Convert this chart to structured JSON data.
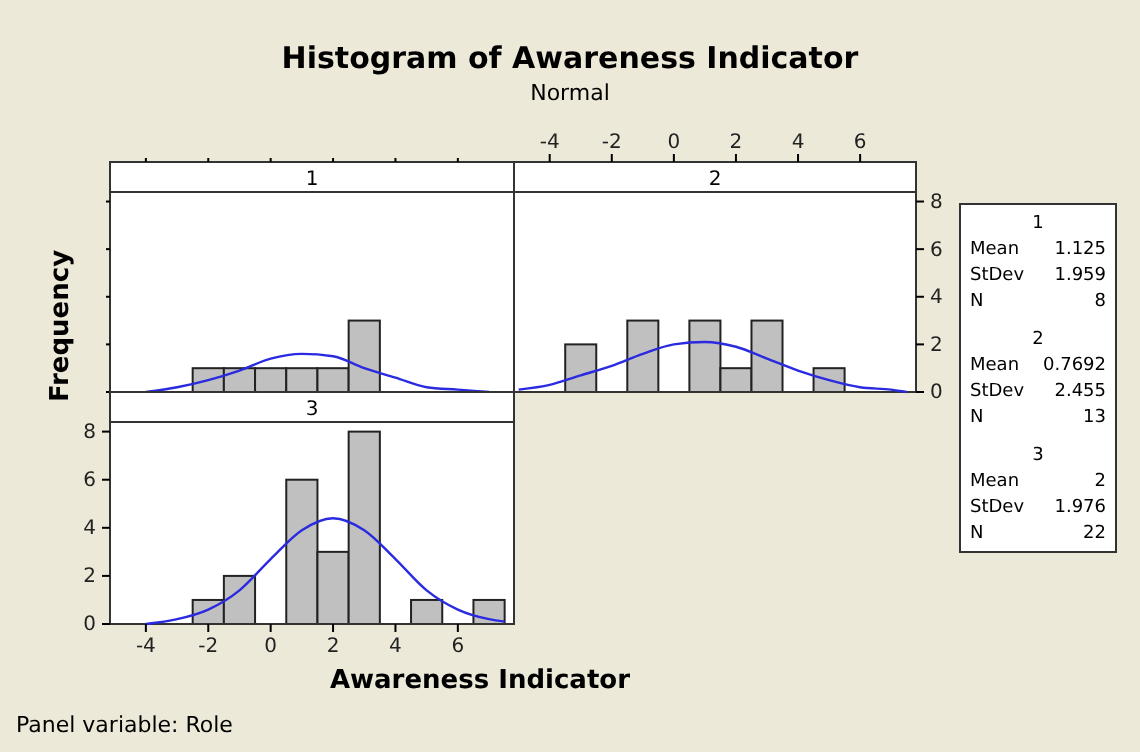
{
  "chart_data": [
    {
      "type": "histogram",
      "title": "1",
      "bins": [
        -2.5,
        -1.5,
        -0.5,
        0.5,
        1.5,
        2.5,
        3.5
      ],
      "values": [
        1,
        1,
        1,
        1,
        1,
        3
      ],
      "color": "#c0c0c0",
      "series": [
        {
          "type": "line",
          "color": "#2a2ae0",
          "x": [
            -4,
            -3,
            -2,
            -1,
            0,
            1,
            2,
            3,
            4,
            5,
            6,
            7
          ],
          "values": [
            0,
            0.2,
            0.5,
            0.9,
            1.4,
            1.6,
            1.5,
            1,
            0.6,
            0.2,
            0.1,
            0
          ]
        }
      ],
      "xlim": [
        -5.15,
        7.8
      ],
      "ylim": [
        0,
        8.4
      ],
      "xticks": [
        -4,
        -2,
        0,
        2,
        4,
        6
      ],
      "yticks": [
        0,
        2,
        4,
        6,
        8
      ],
      "tick_labels": false
    },
    {
      "type": "histogram",
      "title": "2",
      "bins": [
        -3.5,
        -2.5,
        -1.5,
        -0.5,
        0.5,
        1.5,
        2.5,
        3.5,
        4.5,
        5.5
      ],
      "values": [
        2,
        0,
        3,
        0,
        3,
        1,
        3,
        0,
        1
      ],
      "color": "#c0c0c0",
      "series": [
        {
          "type": "line",
          "color": "#2a2ae0",
          "x": [
            -5,
            -4,
            -3,
            -2,
            -1,
            0,
            1,
            2,
            3,
            4,
            5,
            6,
            7,
            7.5
          ],
          "values": [
            0.1,
            0.3,
            0.7,
            1.1,
            1.6,
            2,
            2.1,
            1.9,
            1.4,
            0.9,
            0.5,
            0.2,
            0.1,
            0
          ]
        }
      ],
      "xlim": [
        -5.15,
        7.8
      ],
      "ylim": [
        0,
        8.4
      ],
      "xticks": [
        -4,
        -2,
        0,
        2,
        4,
        6
      ],
      "yticks": [
        0,
        2,
        4,
        6,
        8
      ]
    },
    {
      "type": "histogram",
      "title": "3",
      "xlabel": "Awareness Indicator",
      "ylabel": "Frequency",
      "bins": [
        -2.5,
        -1.5,
        -0.5,
        0.5,
        1.5,
        2.5,
        3.5,
        4.5,
        5.5,
        6.5,
        7.5
      ],
      "values": [
        1,
        2,
        0,
        6,
        3,
        8,
        0,
        1,
        0,
        1
      ],
      "color": "#c0c0c0",
      "series": [
        {
          "type": "line",
          "color": "#2a2ae0",
          "x": [
            -4,
            -3,
            -2,
            -1,
            0,
            1,
            2,
            3,
            4,
            5,
            6,
            7,
            7.5
          ],
          "values": [
            0,
            0.2,
            0.6,
            1.4,
            2.7,
            3.9,
            4.4,
            3.9,
            2.7,
            1.4,
            0.6,
            0.2,
            0.1
          ]
        }
      ],
      "xlim": [
        -5.15,
        7.8
      ],
      "ylim": [
        0,
        8.4
      ],
      "xticks": [
        -4,
        -2,
        0,
        2,
        4,
        6
      ],
      "yticks": [
        0,
        2,
        4,
        6,
        8
      ]
    },
    {
      "type": "other",
      "title": "Histogram of Awareness Indicator",
      "subtitle": "Normal",
      "annotations": [
        "1",
        "Mean",
        "1.125",
        "StDev",
        "1.959",
        "N",
        "8",
        "2",
        "Mean",
        "0.7692",
        "StDev",
        "2.455",
        "N",
        "13",
        "3",
        "Mean",
        "2",
        "StDev",
        "1.976",
        "N",
        "22",
        "Panel variable: Role"
      ]
    }
  ]
}
